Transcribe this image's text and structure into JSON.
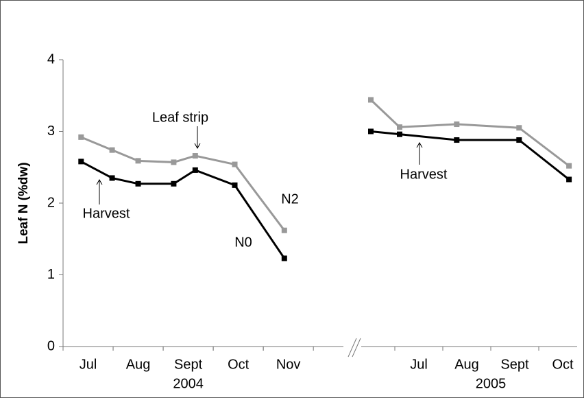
{
  "chart_data": [
    {
      "type": "line",
      "ylabel": "Leaf N (%dw)",
      "ylim": [
        0,
        4
      ],
      "yticks": [
        0,
        1,
        2,
        3,
        4
      ],
      "xlim": [
        6.5,
        12.1
      ],
      "xticks": [
        {
          "value": 7,
          "label": "Jul"
        },
        {
          "value": 8,
          "label": "Aug"
        },
        {
          "value": 9,
          "label": "Sept"
        },
        {
          "value": 10,
          "label": "Oct"
        },
        {
          "value": 11,
          "label": "Nov"
        }
      ],
      "xlabel": "2004",
      "series": [
        {
          "name": "N2",
          "color": "#999999",
          "x": [
            6.86,
            7.48,
            8.0,
            8.71,
            9.14,
            9.93,
            10.92
          ],
          "values": [
            2.92,
            2.74,
            2.59,
            2.57,
            2.66,
            2.54,
            1.62
          ]
        },
        {
          "name": "N0",
          "color": "#000000",
          "x": [
            6.86,
            7.48,
            8.0,
            8.71,
            9.14,
            9.93,
            10.92
          ],
          "values": [
            2.58,
            2.35,
            2.27,
            2.27,
            2.46,
            2.25,
            1.23
          ]
        }
      ],
      "annotations": [
        "Leaf strip",
        "Harvest"
      ]
    },
    {
      "type": "line",
      "ylim": [
        0,
        4
      ],
      "xlim": [
        5.8,
        10.3
      ],
      "xticks": [
        {
          "value": 7,
          "label": "Jul"
        },
        {
          "value": 8,
          "label": "Aug"
        },
        {
          "value": 9,
          "label": "Sept"
        },
        {
          "value": 10,
          "label": "Oct"
        }
      ],
      "xlabel": "2005",
      "series": [
        {
          "color": "#999999",
          "x": [
            6.0,
            6.6,
            7.79,
            9.09,
            10.13
          ],
          "values": [
            3.44,
            3.06,
            3.1,
            3.05,
            2.52
          ]
        },
        {
          "color": "#000000",
          "x": [
            6.0,
            6.6,
            7.79,
            9.09,
            10.13
          ],
          "values": [
            3.0,
            2.96,
            2.88,
            2.88,
            2.33
          ]
        }
      ],
      "annotations": [
        "Harvest"
      ]
    }
  ]
}
